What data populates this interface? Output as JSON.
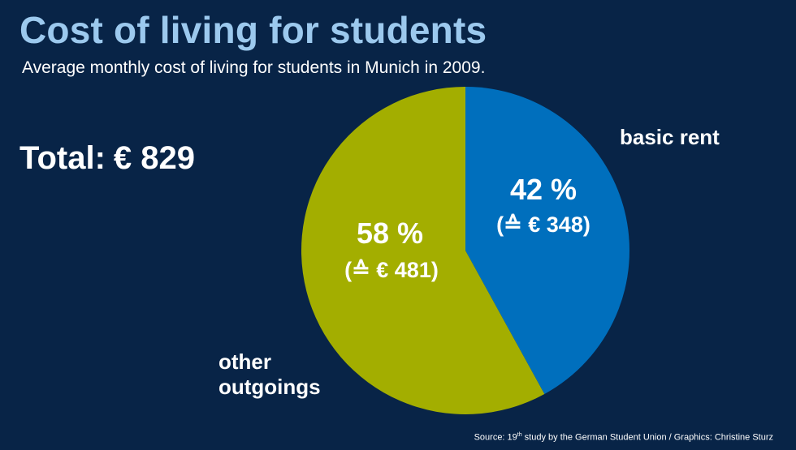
{
  "header": {
    "title": "Cost of living for students",
    "subtitle": "Average monthly cost of living for students in Munich in 2009."
  },
  "total": {
    "label": "Total:",
    "value": "€ 829"
  },
  "chart_data": {
    "type": "pie",
    "title": "Cost of living for students",
    "subtitle": "Average monthly cost of living for students in Munich in 2009.",
    "total_eur": 829,
    "slices": [
      {
        "name": "basic rent",
        "percent": 42,
        "percent_label": "42 %",
        "amount_eur": 348,
        "amount_label": "(≙ € 348)",
        "color": "#006fbd"
      },
      {
        "name": "other outgoings",
        "name_lines": [
          "other",
          "outgoings"
        ],
        "percent": 58,
        "percent_label": "58 %",
        "amount_eur": 481,
        "amount_label": "(≙ € 481)",
        "color": "#a3ae00"
      }
    ],
    "start": "12 o'clock, clockwise"
  },
  "footer": {
    "source_prefix": "Source: 19",
    "source_sup": "th",
    "source_suffix": " study by the German Student Union / Graphics: Christine Sturz"
  },
  "colors": {
    "background": "#082447",
    "title": "#9cc9ee",
    "text": "#ffffff"
  }
}
